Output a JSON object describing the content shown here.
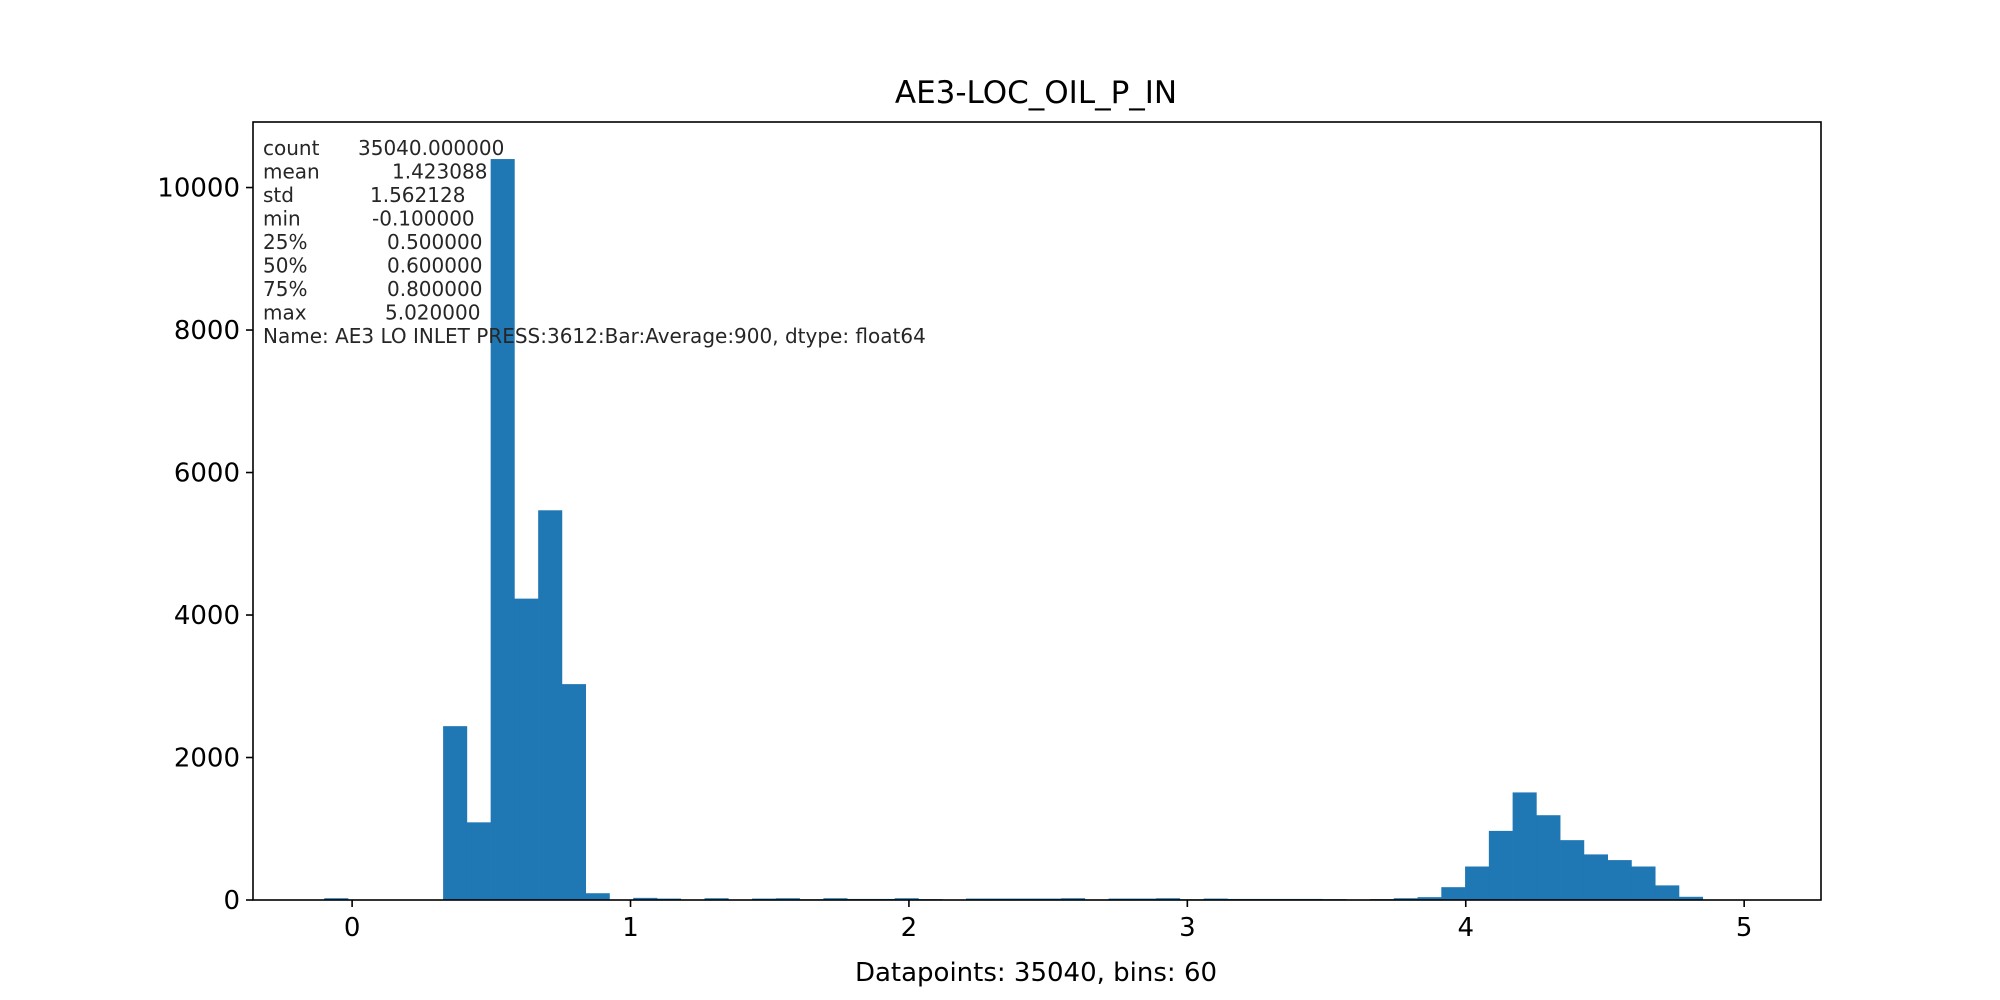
{
  "chart_data": {
    "type": "bar",
    "title": "AE3-LOC_OIL_P_IN",
    "xlabel": "Datapoints: 35040, bins: 60",
    "ylabel": "",
    "bar_color": "#1f77b4",
    "grid": false,
    "xlim": [
      -0.356,
      5.276
    ],
    "ylim": [
      0,
      10920
    ],
    "xticks": [
      0,
      1,
      2,
      3,
      4,
      5
    ],
    "yticks": [
      0,
      2000,
      4000,
      6000,
      8000,
      10000
    ],
    "bin_start": -0.1,
    "bin_width": 0.0853667,
    "counts": [
      25,
      0,
      0,
      0,
      0,
      2440,
      1090,
      10400,
      4230,
      5470,
      3030,
      95,
      2,
      30,
      20,
      5,
      25,
      0,
      20,
      25,
      10,
      25,
      15,
      15,
      25,
      12,
      0,
      20,
      20,
      20,
      20,
      25,
      8,
      20,
      20,
      25,
      10,
      20,
      15,
      15,
      15,
      15,
      12,
      0,
      12,
      25,
      40,
      180,
      470,
      970,
      1510,
      1190,
      840,
      640,
      560,
      470,
      205,
      45,
      0,
      0
    ],
    "stats_box": {
      "rows": [
        {
          "label": "count",
          "value": "35040.000000",
          "x_offset": 95
        },
        {
          "label": "mean",
          "value": "1.423088",
          "x_offset": 129
        },
        {
          "label": "std",
          "value": "1.562128",
          "x_offset": 107
        },
        {
          "label": "min",
          "value": "-0.100000",
          "x_offset": 109
        },
        {
          "label": "25%",
          "value": "0.500000",
          "x_offset": 124
        },
        {
          "label": "50%",
          "value": "0.600000",
          "x_offset": 124
        },
        {
          "label": "75%",
          "value": "0.800000",
          "x_offset": 124
        },
        {
          "label": "max",
          "value": "5.020000",
          "x_offset": 122
        }
      ],
      "footer": "Name: AE3 LO INLET PRESS:3612:Bar:Average:900, dtype: float64"
    }
  }
}
